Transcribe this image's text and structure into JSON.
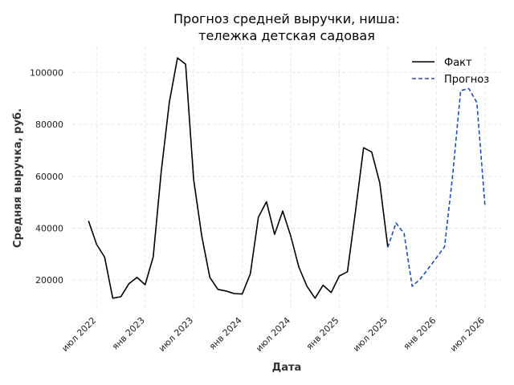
{
  "chart_data": {
    "type": "line",
    "title_line1": "Прогноз средней выручки, ниша:",
    "title_line2": "тележка детская садовая",
    "xlabel": "Дата",
    "ylabel": "Средняя выручка, руб.",
    "x_ticks": [
      "июл 2022",
      "янв 2023",
      "июл 2023",
      "янв 2024",
      "июл 2024",
      "янв 2025",
      "июл 2025",
      "янв 2026",
      "июл 2026"
    ],
    "y_ticks": [
      20000,
      40000,
      60000,
      80000,
      100000
    ],
    "ylim": [
      8000,
      110000
    ],
    "xlim": [
      "2022-04",
      "2026-09"
    ],
    "grid": true,
    "legend_position": "top-right",
    "colors": {
      "fact": "#000000",
      "forecast": "#1a4fbf",
      "grid": "#e6e6e6"
    },
    "series": [
      {
        "name": "Факт",
        "style": "solid",
        "points": [
          [
            "2022-06",
            42800
          ],
          [
            "2022-07",
            33800
          ],
          [
            "2022-08",
            28800
          ],
          [
            "2022-09",
            13000
          ],
          [
            "2022-10",
            13600
          ],
          [
            "2022-11",
            18600
          ],
          [
            "2022-12",
            21000
          ],
          [
            "2023-01",
            18200
          ],
          [
            "2023-02",
            29000
          ],
          [
            "2023-03",
            62000
          ],
          [
            "2023-04",
            88600
          ],
          [
            "2023-05",
            105600
          ],
          [
            "2023-06",
            103200
          ],
          [
            "2023-07",
            58800
          ],
          [
            "2023-08",
            37000
          ],
          [
            "2023-09",
            21000
          ],
          [
            "2023-10",
            16400
          ],
          [
            "2023-11",
            15800
          ],
          [
            "2023-12",
            14800
          ],
          [
            "2024-01",
            14600
          ],
          [
            "2024-02",
            22400
          ],
          [
            "2024-03",
            44200
          ],
          [
            "2024-04",
            50200
          ],
          [
            "2024-05",
            37600
          ],
          [
            "2024-06",
            46600
          ],
          [
            "2024-07",
            37000
          ],
          [
            "2024-08",
            25000
          ],
          [
            "2024-09",
            17600
          ],
          [
            "2024-10",
            13000
          ],
          [
            "2024-11",
            18000
          ],
          [
            "2024-12",
            15200
          ],
          [
            "2025-01",
            21600
          ],
          [
            "2025-02",
            23200
          ],
          [
            "2025-03",
            46400
          ],
          [
            "2025-04",
            71000
          ],
          [
            "2025-05",
            69400
          ],
          [
            "2025-06",
            57400
          ],
          [
            "2025-07",
            32600
          ]
        ]
      },
      {
        "name": "Прогноз",
        "style": "dashed",
        "points": [
          [
            "2025-07",
            32600
          ],
          [
            "2025-08",
            42000
          ],
          [
            "2025-09",
            38000
          ],
          [
            "2025-10",
            17600
          ],
          [
            "2025-11",
            20400
          ],
          [
            "2025-12",
            24400
          ],
          [
            "2026-01",
            28600
          ],
          [
            "2026-02",
            32800
          ],
          [
            "2026-03",
            60000
          ],
          [
            "2026-04",
            93000
          ],
          [
            "2026-05",
            93800
          ],
          [
            "2026-06",
            88400
          ],
          [
            "2026-07",
            48800
          ]
        ]
      }
    ]
  }
}
